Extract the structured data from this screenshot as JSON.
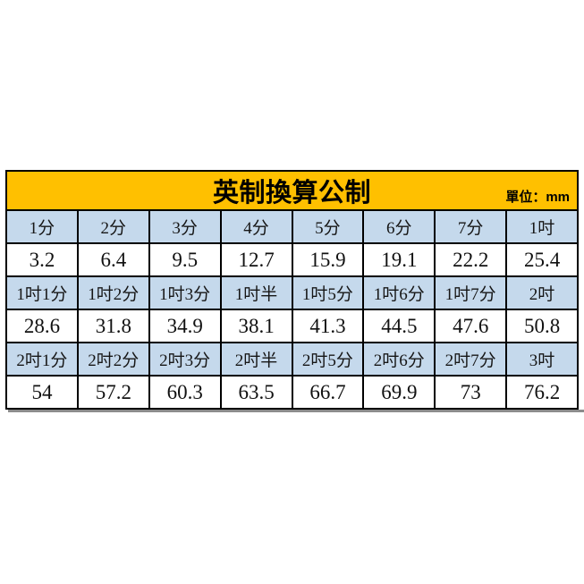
{
  "page": {
    "background": "#FFFFFF"
  },
  "table": {
    "title": "英制換算公制",
    "unit_label": "單位：mm",
    "colors": {
      "title_bg": "#FFC000",
      "label_row_bg": "#C5D9EC",
      "value_row_bg": "#FFFFFF",
      "border": "#000000",
      "shadow_bar": "#8C8C8C"
    },
    "rows": [
      {
        "type": "labels",
        "cells": [
          "1分",
          "2分",
          "3分",
          "4分",
          "5分",
          "6分",
          "7分",
          "1吋"
        ]
      },
      {
        "type": "values",
        "cells": [
          "3.2",
          "6.4",
          "9.5",
          "12.7",
          "15.9",
          "19.1",
          "22.2",
          "25.4"
        ]
      },
      {
        "type": "labels",
        "cells": [
          "1吋1分",
          "1吋2分",
          "1吋3分",
          "1吋半",
          "1吋5分",
          "1吋6分",
          "1吋7分",
          "2吋"
        ]
      },
      {
        "type": "values",
        "cells": [
          "28.6",
          "31.8",
          "34.9",
          "38.1",
          "41.3",
          "44.5",
          "47.6",
          "50.8"
        ]
      },
      {
        "type": "labels",
        "cells": [
          "2吋1分",
          "2吋2分",
          "2吋3分",
          "2吋半",
          "2吋5分",
          "2吋6分",
          "2吋7分",
          "3吋"
        ]
      },
      {
        "type": "values",
        "cells": [
          "54",
          "57.2",
          "60.3",
          "63.5",
          "66.7",
          "69.9",
          "73",
          "76.2"
        ]
      }
    ]
  }
}
